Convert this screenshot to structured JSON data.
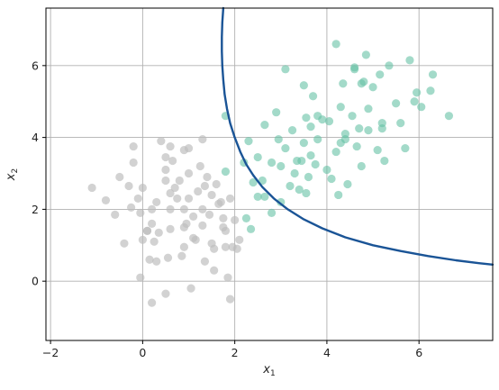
{
  "chart_data": {
    "type": "scatter",
    "title": "",
    "xlabel": "x",
    "xlabel_sub": "1",
    "ylabel": "x",
    "ylabel_sub": "2",
    "xlim": [
      -2.1,
      7.6
    ],
    "ylim": [
      -1.65,
      7.6
    ],
    "xticks": [
      -2,
      0,
      2,
      4,
      6
    ],
    "yticks": [
      0,
      2,
      4,
      6
    ],
    "grid": true,
    "legend": "none",
    "colors": {
      "class_a": "#bdbdbd",
      "class_b": "#66c2a5",
      "boundary": "#1a5496",
      "grid": "#b0b0b0",
      "axis": "#000000"
    },
    "series": [
      {
        "color": "#bdbdbd",
        "points": [
          [
            -1.1,
            2.6
          ],
          [
            -0.8,
            2.25
          ],
          [
            -0.6,
            1.85
          ],
          [
            -0.5,
            2.9
          ],
          [
            -0.3,
            2.65
          ],
          [
            -0.25,
            2.05
          ],
          [
            -0.2,
            3.3
          ],
          [
            -0.2,
            3.75
          ],
          [
            -0.1,
            2.3
          ],
          [
            -0.05,
            0.1
          ],
          [
            0.0,
            2.6
          ],
          [
            -0.05,
            1.9
          ],
          [
            0.0,
            1.15
          ],
          [
            0.1,
            1.4
          ],
          [
            0.15,
            0.6
          ],
          [
            0.2,
            2.0
          ],
          [
            0.2,
            1.6
          ],
          [
            0.3,
            2.2
          ],
          [
            0.4,
            3.9
          ],
          [
            0.5,
            2.8
          ],
          [
            0.5,
            3.1
          ],
          [
            0.6,
            2.45
          ],
          [
            0.6,
            2.0
          ],
          [
            0.6,
            1.45
          ],
          [
            0.55,
            0.65
          ],
          [
            0.5,
            -0.35
          ],
          [
            0.6,
            3.75
          ],
          [
            0.7,
            2.6
          ],
          [
            0.8,
            2.8
          ],
          [
            0.9,
            2.0
          ],
          [
            0.9,
            1.5
          ],
          [
            0.9,
            0.95
          ],
          [
            1.0,
            2.3
          ],
          [
            1.0,
            3.0
          ],
          [
            1.1,
            1.8
          ],
          [
            1.1,
            1.2
          ],
          [
            1.2,
            2.5
          ],
          [
            1.25,
            3.2
          ],
          [
            1.3,
            2.0
          ],
          [
            1.3,
            1.55
          ],
          [
            1.35,
            0.55
          ],
          [
            1.4,
            2.9
          ],
          [
            1.5,
            2.4
          ],
          [
            1.5,
            1.05
          ],
          [
            1.55,
            0.3
          ],
          [
            1.6,
            2.7
          ],
          [
            1.7,
            2.2
          ],
          [
            1.75,
            1.75
          ],
          [
            1.8,
            1.4
          ],
          [
            1.8,
            0.95
          ],
          [
            1.85,
            0.1
          ],
          [
            1.9,
            2.3
          ],
          [
            2.0,
            1.7
          ],
          [
            2.05,
            0.9
          ],
          [
            2.1,
            1.15
          ],
          [
            1.9,
            -0.5
          ],
          [
            0.2,
            -0.6
          ],
          [
            0.35,
            1.35
          ],
          [
            0.65,
            3.35
          ],
          [
            0.75,
            2.3
          ],
          [
            0.95,
            1.6
          ],
          [
            1.15,
            1.15
          ],
          [
            1.35,
            2.65
          ],
          [
            1.45,
            1.85
          ],
          [
            1.65,
            2.15
          ],
          [
            1.95,
            0.95
          ],
          [
            0.1,
            1.4
          ],
          [
            0.5,
            3.45
          ],
          [
            1.0,
            3.7
          ],
          [
            1.3,
            3.95
          ],
          [
            0.85,
            0.7
          ],
          [
            1.05,
            -0.2
          ],
          [
            0.3,
            0.55
          ],
          [
            1.75,
            1.5
          ],
          [
            -0.4,
            1.05
          ],
          [
            0.25,
            1.1
          ],
          [
            0.9,
            3.65
          ],
          [
            1.55,
            0.9
          ]
        ]
      },
      {
        "color": "#66c2a5",
        "points": [
          [
            1.8,
            4.6
          ],
          [
            2.2,
            3.3
          ],
          [
            2.3,
            3.9
          ],
          [
            2.35,
            1.45
          ],
          [
            2.4,
            2.75
          ],
          [
            2.5,
            3.45
          ],
          [
            2.6,
            2.8
          ],
          [
            2.65,
            4.35
          ],
          [
            2.8,
            3.3
          ],
          [
            2.8,
            1.9
          ],
          [
            2.9,
            4.7
          ],
          [
            3.0,
            3.2
          ],
          [
            3.1,
            3.7
          ],
          [
            3.2,
            2.65
          ],
          [
            3.25,
            4.2
          ],
          [
            3.3,
            3.0
          ],
          [
            3.4,
            2.55
          ],
          [
            3.45,
            3.35
          ],
          [
            3.5,
            3.85
          ],
          [
            3.55,
            4.55
          ],
          [
            3.6,
            2.9
          ],
          [
            3.65,
            4.3
          ],
          [
            3.7,
            5.15
          ],
          [
            3.75,
            3.25
          ],
          [
            3.8,
            3.95
          ],
          [
            3.9,
            4.5
          ],
          [
            4.0,
            3.1
          ],
          [
            4.05,
            4.45
          ],
          [
            4.1,
            2.85
          ],
          [
            4.2,
            3.6
          ],
          [
            4.3,
            4.85
          ],
          [
            4.35,
            5.5
          ],
          [
            4.4,
            3.95
          ],
          [
            4.45,
            2.7
          ],
          [
            4.55,
            4.6
          ],
          [
            4.6,
            5.9
          ],
          [
            4.7,
            4.25
          ],
          [
            4.75,
            3.2
          ],
          [
            4.8,
            5.55
          ],
          [
            4.9,
            4.8
          ],
          [
            5.0,
            5.4
          ],
          [
            5.1,
            3.65
          ],
          [
            5.2,
            4.4
          ],
          [
            5.25,
            3.35
          ],
          [
            5.35,
            6.0
          ],
          [
            5.5,
            4.95
          ],
          [
            5.6,
            4.4
          ],
          [
            5.7,
            3.7
          ],
          [
            5.8,
            6.15
          ],
          [
            5.9,
            5.0
          ],
          [
            6.05,
            4.85
          ],
          [
            6.3,
            5.75
          ],
          [
            6.65,
            4.6
          ],
          [
            3.1,
            5.9
          ],
          [
            3.5,
            5.45
          ],
          [
            4.2,
            6.6
          ],
          [
            4.6,
            5.95
          ],
          [
            4.85,
            6.3
          ],
          [
            5.95,
            5.25
          ],
          [
            3.35,
            3.35
          ],
          [
            2.95,
            3.95
          ],
          [
            3.8,
            4.6
          ],
          [
            4.3,
            3.85
          ],
          [
            4.75,
            5.5
          ],
          [
            4.25,
            2.4
          ],
          [
            3.55,
            2.45
          ],
          [
            2.25,
            1.75
          ],
          [
            5.2,
            4.25
          ],
          [
            4.65,
            3.75
          ],
          [
            4.4,
            4.1
          ],
          [
            1.8,
            3.05
          ],
          [
            2.65,
            2.35
          ],
          [
            3.65,
            3.5
          ],
          [
            4.9,
            4.2
          ],
          [
            5.15,
            5.75
          ],
          [
            6.25,
            5.3
          ],
          [
            3.0,
            2.2
          ],
          [
            2.5,
            2.35
          ]
        ]
      }
    ],
    "decision_boundary": {
      "color": "#1a5496",
      "points": [
        [
          1.75,
          7.6
        ],
        [
          1.73,
          7.2
        ],
        [
          1.72,
          6.8
        ],
        [
          1.72,
          6.4
        ],
        [
          1.73,
          6.0
        ],
        [
          1.75,
          5.6
        ],
        [
          1.78,
          5.2
        ],
        [
          1.83,
          4.8
        ],
        [
          1.9,
          4.4
        ],
        [
          2.0,
          4.0
        ],
        [
          2.12,
          3.6
        ],
        [
          2.25,
          3.25
        ],
        [
          2.4,
          2.95
        ],
        [
          2.6,
          2.62
        ],
        [
          2.85,
          2.3
        ],
        [
          3.15,
          2.0
        ],
        [
          3.5,
          1.72
        ],
        [
          3.9,
          1.47
        ],
        [
          4.4,
          1.22
        ],
        [
          5.0,
          1.0
        ],
        [
          5.6,
          0.84
        ],
        [
          6.2,
          0.7
        ],
        [
          6.8,
          0.58
        ],
        [
          7.3,
          0.5
        ],
        [
          7.6,
          0.46
        ]
      ]
    }
  }
}
